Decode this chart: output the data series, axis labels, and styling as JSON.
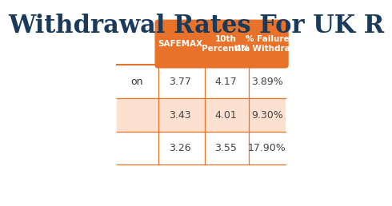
{
  "title": "Withdrawal Rates For UK R",
  "title_color": "#1a3a5c",
  "title_fontsize": 22,
  "header_bg": "#e8722a",
  "header_text_color": "#ffffff",
  "header_labels": [
    "SAFEMAX",
    "10th\nPercentile",
    "% Failure\n4% Withdra..."
  ],
  "row_labels": [
    "on",
    "",
    ""
  ],
  "row_bg_colors": [
    "#ffffff",
    "#fce0d0",
    "#ffffff"
  ],
  "data": [
    [
      "3.77",
      "4.17",
      "3.89%"
    ],
    [
      "3.43",
      "4.01",
      "9.30%"
    ],
    [
      "3.26",
      "3.55",
      "17.90%"
    ]
  ],
  "orange_border": "#e8722a",
  "light_orange_row": "#fce0d0",
  "bg_color": "#ffffff"
}
